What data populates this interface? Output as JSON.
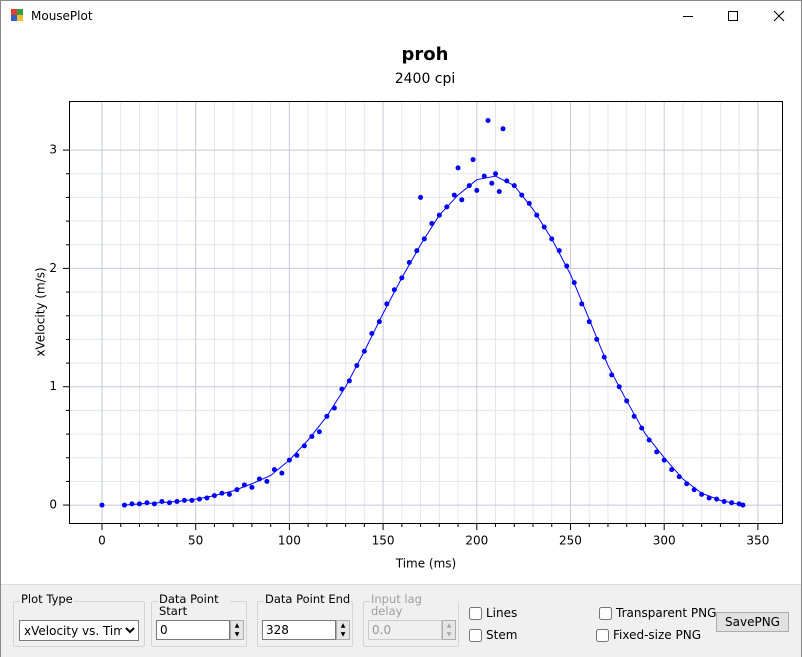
{
  "window": {
    "title": "MousePlot"
  },
  "chart_data": {
    "type": "scatter",
    "title": "proh",
    "subtitle": "2400 cpi",
    "x_label": "Time (ms)",
    "y_label": "xVelocity (m/s)",
    "xlim": [
      -17.6,
      363.4
    ],
    "ylim": [
      -0.16,
      3.415
    ],
    "xticks": [
      0,
      50,
      100,
      150,
      200,
      250,
      300,
      350
    ],
    "yticks": [
      0,
      1,
      2,
      3
    ],
    "grid": true,
    "minor_divisions": 5,
    "series": [
      {
        "mode": "markers",
        "color": "#0000ff",
        "x": [
          0,
          12,
          16,
          20,
          24,
          28,
          32,
          36,
          40,
          44,
          48,
          52,
          56,
          60,
          64,
          68,
          72,
          76,
          80,
          84,
          88,
          92,
          96,
          100,
          104,
          108,
          112,
          116,
          120,
          124,
          128,
          132,
          136,
          140,
          144,
          148,
          152,
          156,
          160,
          164,
          168,
          170,
          172,
          176,
          180,
          184,
          188,
          190,
          192,
          196,
          198,
          200,
          204,
          206,
          208,
          210,
          212,
          214,
          216,
          220,
          224,
          228,
          232,
          236,
          240,
          244,
          248,
          252,
          256,
          260,
          264,
          268,
          272,
          276,
          280,
          284,
          288,
          292,
          296,
          300,
          304,
          308,
          312,
          316,
          320,
          324,
          328,
          332,
          336,
          340,
          342
        ],
        "values": [
          0,
          0,
          0.01,
          0.01,
          0.02,
          0.01,
          0.03,
          0.02,
          0.03,
          0.04,
          0.04,
          0.05,
          0.06,
          0.08,
          0.1,
          0.09,
          0.13,
          0.17,
          0.15,
          0.22,
          0.2,
          0.3,
          0.27,
          0.38,
          0.42,
          0.5,
          0.58,
          0.62,
          0.75,
          0.82,
          0.98,
          1.05,
          1.18,
          1.3,
          1.45,
          1.55,
          1.7,
          1.82,
          1.92,
          2.05,
          2.15,
          2.6,
          2.25,
          2.38,
          2.45,
          2.52,
          2.62,
          2.85,
          2.58,
          2.7,
          2.92,
          2.66,
          2.78,
          3.25,
          2.72,
          2.8,
          2.65,
          3.18,
          2.74,
          2.7,
          2.62,
          2.55,
          2.45,
          2.35,
          2.25,
          2.15,
          2.02,
          1.88,
          1.7,
          1.55,
          1.4,
          1.25,
          1.1,
          1,
          0.88,
          0.75,
          0.65,
          0.55,
          0.45,
          0.38,
          0.3,
          0.24,
          0.18,
          0.13,
          0.09,
          0.06,
          0.05,
          0.03,
          0.02,
          0.01,
          0
        ]
      },
      {
        "mode": "line",
        "color": "#0000ff",
        "x": [
          12,
          20,
          30,
          40,
          50,
          60,
          70,
          80,
          90,
          100,
          110,
          120,
          130,
          140,
          150,
          160,
          170,
          180,
          190,
          200,
          210,
          220,
          230,
          240,
          250,
          260,
          270,
          280,
          290,
          300,
          310,
          320,
          330,
          342
        ],
        "values": [
          0,
          0.01,
          0.02,
          0.03,
          0.05,
          0.08,
          0.12,
          0.18,
          0.25,
          0.38,
          0.55,
          0.75,
          1,
          1.3,
          1.62,
          1.92,
          2.2,
          2.45,
          2.62,
          2.75,
          2.78,
          2.7,
          2.5,
          2.25,
          1.95,
          1.57,
          1.18,
          0.88,
          0.6,
          0.4,
          0.22,
          0.1,
          0.04,
          0
        ]
      }
    ]
  },
  "controls": {
    "plot_type": {
      "label": "Plot Type",
      "value": "xVelocity vs. Time"
    },
    "start": {
      "label": "Data Point Start",
      "value": "0"
    },
    "end": {
      "label": "Data Point End",
      "value": "328"
    },
    "lag": {
      "label": "Input lag delay",
      "value": "0.0",
      "disabled": true
    },
    "checkboxes": [
      {
        "label": "Lines",
        "checked": false
      },
      {
        "label": "Stem",
        "checked": false
      },
      {
        "label": "Transparent PNG",
        "checked": false
      },
      {
        "label": "Fixed-size PNG",
        "checked": false
      }
    ],
    "button": "SavePNG"
  }
}
